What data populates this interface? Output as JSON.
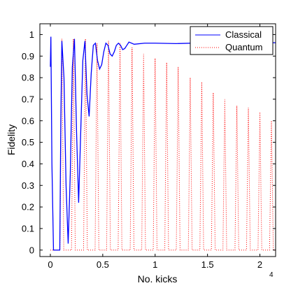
{
  "chart_data": {
    "type": "line",
    "title": "",
    "xlabel": "No. kicks",
    "ylabel": "Fidelity",
    "x_exponent_label": "4",
    "xlim": [
      -0.1,
      2.15
    ],
    "ylim": [
      -0.03,
      1.05
    ],
    "xticks": [
      0,
      0.5,
      1,
      1.5,
      2
    ],
    "xtick_labels": [
      "0",
      "0.5",
      "1",
      "1.5",
      "2"
    ],
    "yticks": [
      0,
      0.1,
      0.2,
      0.3,
      0.4,
      0.5,
      0.6,
      0.7,
      0.8,
      0.9,
      1
    ],
    "ytick_labels": [
      "0",
      "0.1",
      "0.2",
      "0.3",
      "0.4",
      "0.5",
      "0.6",
      "0.7",
      "0.8",
      "0.9",
      "1"
    ],
    "grid": false,
    "legend": {
      "placement": "top-right",
      "entries": [
        "Classical",
        "Quantum"
      ]
    },
    "series": [
      {
        "name": "Classical",
        "color": "#0000ff",
        "style": "solid",
        "x": [
          0,
          0.005,
          0.015,
          0.03,
          0.06,
          0.09,
          0.1,
          0.11,
          0.13,
          0.15,
          0.17,
          0.19,
          0.21,
          0.23,
          0.25,
          0.27,
          0.29,
          0.31,
          0.33,
          0.35,
          0.37,
          0.39,
          0.41,
          0.43,
          0.45,
          0.47,
          0.49,
          0.51,
          0.53,
          0.55,
          0.57,
          0.59,
          0.61,
          0.63,
          0.65,
          0.67,
          0.69,
          0.71,
          0.73,
          0.75,
          0.8,
          0.9,
          1.0,
          1.2,
          1.5,
          1.8,
          2.0,
          2.15
        ],
        "y": [
          0.85,
          0.99,
          0.4,
          0.0,
          0.0,
          0.0,
          0.6,
          0.97,
          0.8,
          0.3,
          0.03,
          0.35,
          0.85,
          0.98,
          0.55,
          0.22,
          0.55,
          0.88,
          0.97,
          0.72,
          0.62,
          0.82,
          0.95,
          0.96,
          0.88,
          0.84,
          0.86,
          0.92,
          0.96,
          0.95,
          0.91,
          0.9,
          0.92,
          0.95,
          0.96,
          0.95,
          0.93,
          0.935,
          0.95,
          0.965,
          0.955,
          0.96,
          0.96,
          0.958,
          0.962,
          0.96,
          0.962,
          0.962
        ]
      },
      {
        "name": "Quantum",
        "color": "#ff0000",
        "style": "dotted",
        "peak_x": [
          0.11,
          0.22,
          0.335,
          0.445,
          0.555,
          0.665,
          0.78,
          0.89,
          1.0,
          1.11,
          1.22,
          1.335,
          1.445,
          1.555,
          1.665,
          1.78,
          1.89,
          2.0,
          2.11
        ],
        "peak_y": [
          0.98,
          0.98,
          0.98,
          0.96,
          0.97,
          0.96,
          0.94,
          0.91,
          0.89,
          0.87,
          0.85,
          0.8,
          0.78,
          0.73,
          0.7,
          0.67,
          0.66,
          0.64,
          0.6
        ],
        "trough_y": 0.0
      }
    ]
  }
}
